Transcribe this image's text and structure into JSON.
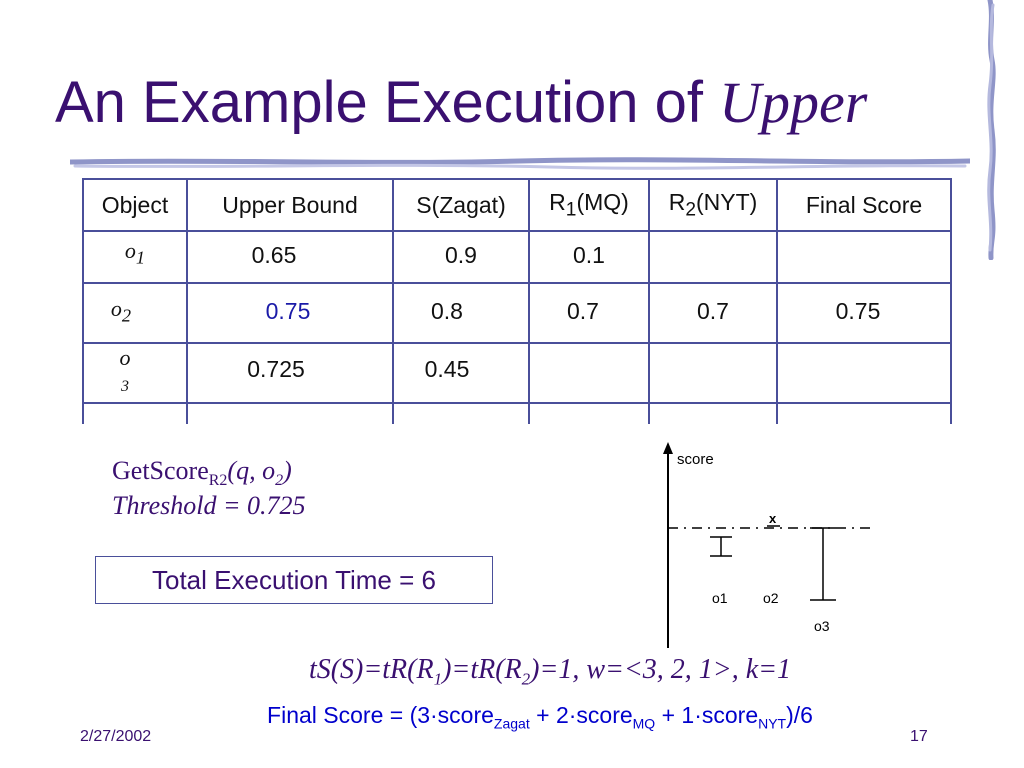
{
  "slide": {
    "title_plain": "An Example Execution of",
    "title_italic": "Upper"
  },
  "table": {
    "headers": {
      "object": "Object",
      "upper_bound": "Upper Bound",
      "s_zagat_label": "S(Zagat)",
      "r1_prefix": "R",
      "r1_sub": "1",
      "r1_suffix": "(MQ)",
      "r2_prefix": "R",
      "r2_sub": "2",
      "r2_suffix": "(NYT)",
      "final_score": "Final Score"
    },
    "rows": [
      {
        "obj_letter": "o",
        "obj_sub": "1",
        "upper_bound": "0.65",
        "s_zagat": "0.9",
        "r1": "0.1",
        "r2": "",
        "final": ""
      },
      {
        "obj_letter": "o",
        "obj_sub": "2",
        "upper_bound": "0.75",
        "s_zagat": "0.8",
        "r1": "0.7",
        "r2": "0.7",
        "final": "0.75"
      },
      {
        "obj_letter": "o",
        "obj_sub": "3",
        "upper_bound": "0.725",
        "s_zagat": "0.45",
        "r1": "",
        "r2": "",
        "final": ""
      }
    ]
  },
  "getscore": {
    "prefix": "GetScore",
    "sub": "R2",
    "args_open": "(q, o",
    "args_sub": "2",
    "args_close": ")",
    "threshold": "Threshold = 0.725"
  },
  "total_execution_time": "Total Execution Time = 6",
  "plot": {
    "ylabel": "score",
    "mark": "x",
    "labels": [
      "o1",
      "o2",
      "o3"
    ]
  },
  "formula_line1": {
    "p1": "tS(S)=tR(R",
    "s1": "1",
    "p2": ")=tR(R",
    "s2": "2",
    "p3": ")=1, w=<3, 2, 1>, k=1"
  },
  "formula_line2": {
    "p1": "Final Score = (3·score",
    "s1": "Zagat",
    "p2": " + 2·score",
    "s2": "MQ",
    "p3": " + 1·score",
    "s3": "NYT",
    "p4": ")/6"
  },
  "footer": {
    "date": "2/27/2002",
    "page": "17"
  },
  "colors": {
    "title": "#3a1070",
    "table_border": "#4a4f9a",
    "formula_blue": "#0000cc"
  }
}
